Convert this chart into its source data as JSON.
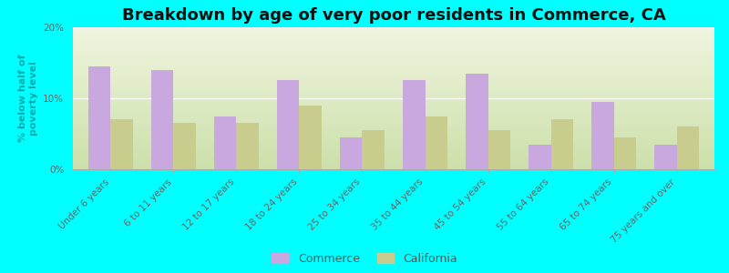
{
  "title": "Breakdown by age of very poor residents in Commerce, CA",
  "ylabel": "% below half of\npoverty level",
  "categories": [
    "Under 6 years",
    "6 to 11 years",
    "12 to 17 years",
    "18 to 24 years",
    "25 to 34 years",
    "35 to 44 years",
    "45 to 54 years",
    "55 to 64 years",
    "65 to 74 years",
    "75 years and over"
  ],
  "commerce_values": [
    14.5,
    14.0,
    7.5,
    12.5,
    4.5,
    12.5,
    13.5,
    3.5,
    9.5,
    3.5
  ],
  "california_values": [
    7.0,
    6.5,
    6.5,
    9.0,
    5.5,
    7.5,
    5.5,
    7.0,
    4.5,
    6.0
  ],
  "commerce_color": "#c9a8e0",
  "california_color": "#c8cc8c",
  "ylim": [
    0,
    20
  ],
  "yticks": [
    0,
    10,
    20
  ],
  "ytick_labels": [
    "0%",
    "10%",
    "20%"
  ],
  "background_color": "#00ffff",
  "grad_top": "#f0f5e0",
  "grad_bottom": "#cce0aa",
  "title_fontsize": 13,
  "axis_label_fontsize": 8,
  "tick_fontsize": 7.5,
  "bar_width": 0.35,
  "legend_labels": [
    "Commerce",
    "California"
  ]
}
